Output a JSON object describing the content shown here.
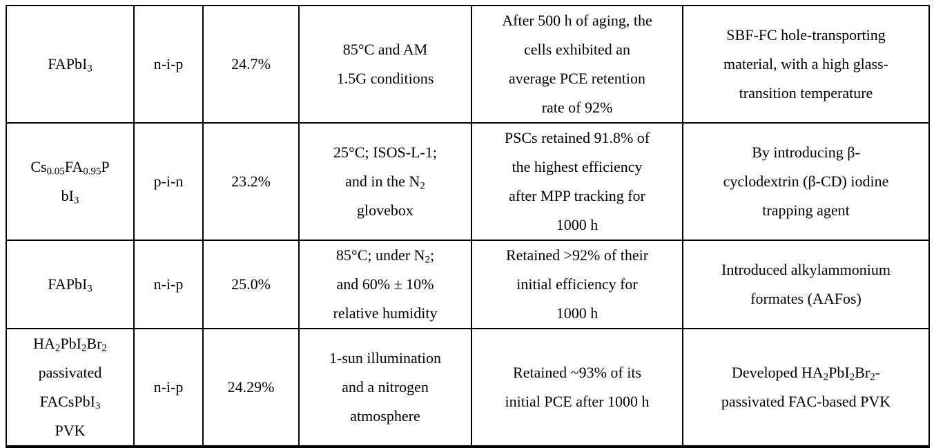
{
  "page": {
    "background_color": "#ffffff",
    "text_color": "#000000",
    "border_color": "#000000"
  },
  "table": {
    "rows": [
      {
        "material": "FAPbI_{3}",
        "structure": "n-i-p",
        "pce": "24.7%",
        "conditions": "85°C and AM\n1.5G conditions",
        "stability": "After 500 h of aging, the\ncells exhibited an\naverage PCE retention\nrate of 92%",
        "strategy": "SBF-FC hole-transporting\nmaterial, with a high glass-\ntransition temperature"
      },
      {
        "material": "Cs_{0.05}FA_{0.95}P\nbI_{3}",
        "structure": "p-i-n",
        "pce": "23.2%",
        "conditions": "25°C; ISOS-L-1;\nand in the N_{2}\nglovebox",
        "stability": "PSCs retained 91.8% of\nthe highest efficiency\nafter MPP tracking for\n1000 h",
        "strategy": "By introducing β-\ncyclodextrin (β-CD) iodine\ntrapping agent"
      },
      {
        "material": "FAPbI_{3}",
        "structure": "n-i-p",
        "pce": "25.0%",
        "conditions": "85°C; under N_{2};\nand 60% ± 10%\nrelative humidity",
        "stability": "Retained >92% of their\ninitial efficiency for\n1000 h",
        "strategy": "Introduced alkylammonium\nformates (AAFos)"
      },
      {
        "material": "HA_{2}PbI_{2}Br_{2}\npassivated\nFACsPbI_{3}\nPVK",
        "structure": "n-i-p",
        "pce": "24.29%",
        "conditions": "1-sun illumination\nand a nitrogen\natmosphere",
        "stability": "Retained ~93% of its\ninitial PCE after 1000 h",
        "strategy": "Developed HA_{2}PbI_{2}Br_{2}-\npassivated FAC-based PVK"
      }
    ]
  }
}
